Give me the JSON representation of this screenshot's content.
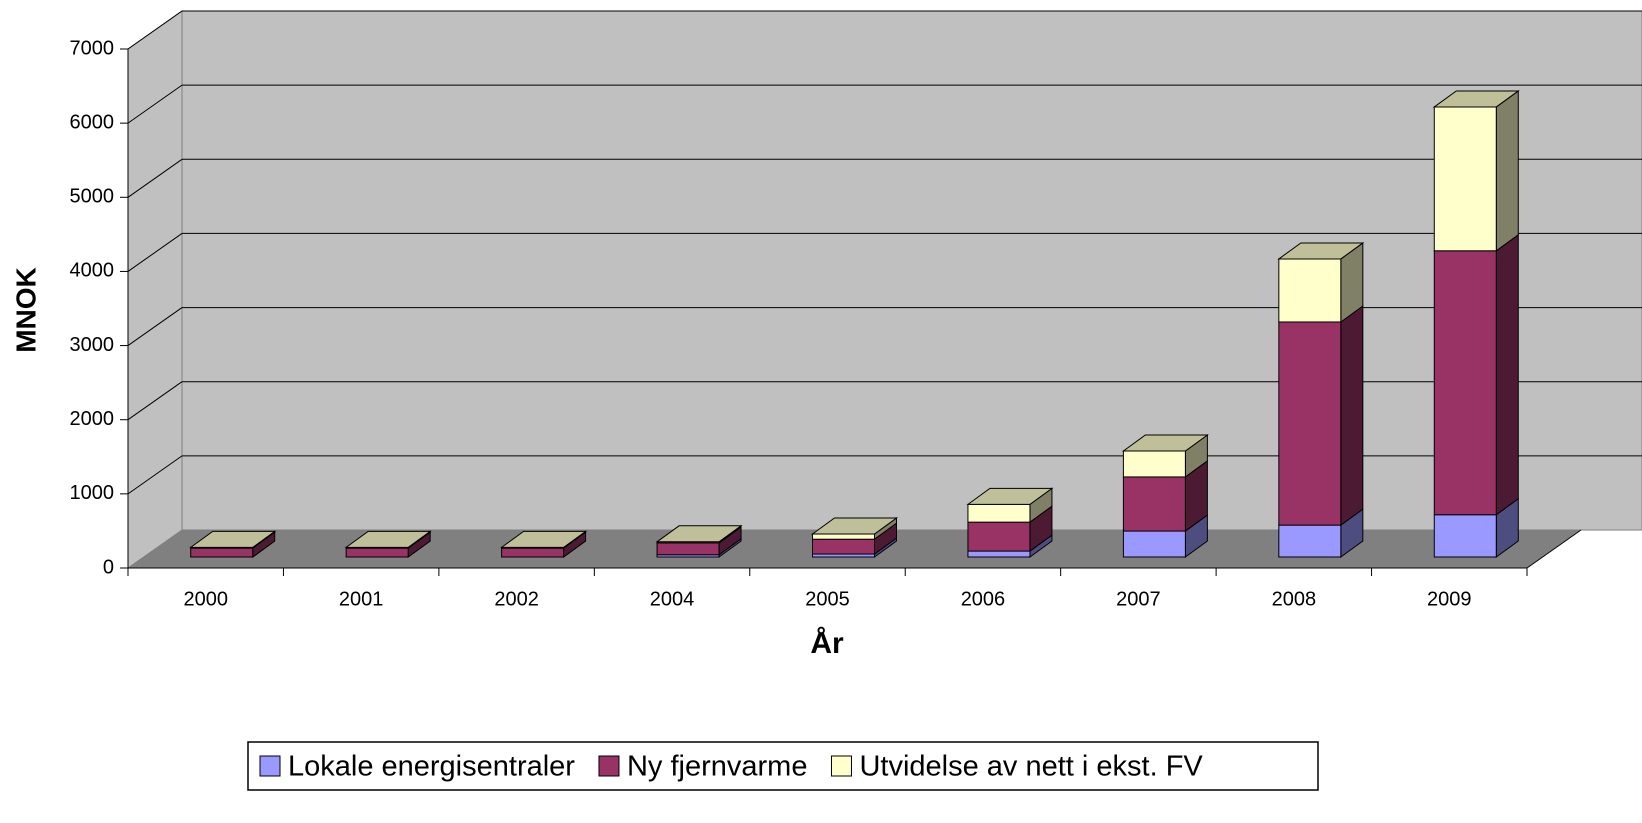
{
  "chart_data": {
    "type": "bar3d_stacked",
    "x_label": "År",
    "y_label": "MNOK",
    "categories": [
      "2000",
      "2001",
      "2002",
      "2004",
      "2005",
      "2006",
      "2007",
      "2008",
      "2009"
    ],
    "series": [
      {
        "name": "Lokale energisentraler",
        "color": "#9999ff",
        "values": [
          0,
          0,
          0,
          30,
          40,
          80,
          350,
          430,
          570
        ]
      },
      {
        "name": "Ny fjernvarme",
        "color": "#993366",
        "values": [
          120,
          120,
          120,
          160,
          200,
          390,
          730,
          2740,
          3560
        ]
      },
      {
        "name": "Utvidelse av nett i ekst. FV",
        "color": "#ffffcc",
        "values": [
          10,
          10,
          10,
          15,
          70,
          240,
          350,
          850,
          1940
        ]
      }
    ],
    "ylim": [
      0,
      7000
    ],
    "yticks": [
      0,
      1000,
      2000,
      3000,
      4000,
      5000,
      6000,
      7000
    ],
    "grid": true
  }
}
